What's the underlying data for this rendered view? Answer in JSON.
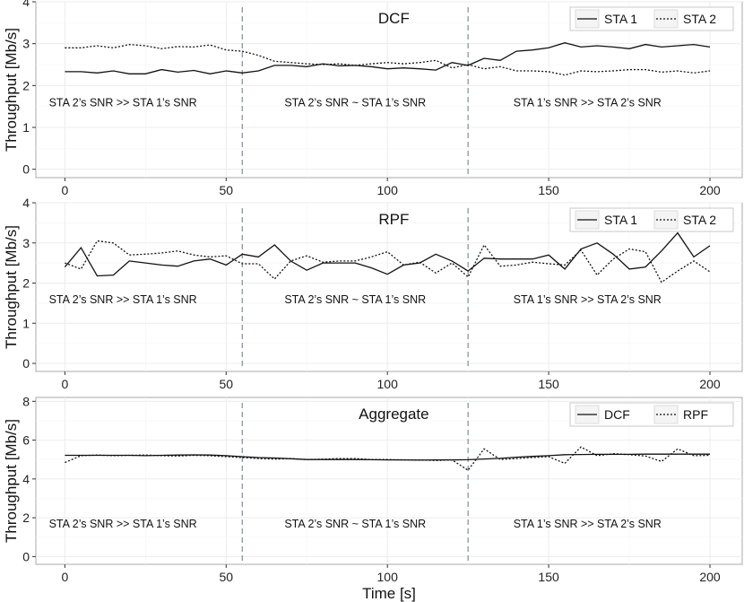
{
  "chart_data": [
    {
      "type": "line",
      "title": "DCF",
      "xlabel": "",
      "ylabel": "Throughput [Mb/s]",
      "xlim": [
        -9,
        210
      ],
      "ylim": [
        -0.2,
        4.0
      ],
      "xticks": [
        0,
        50,
        100,
        150,
        200
      ],
      "yticks": [
        0,
        1,
        2,
        3,
        4
      ],
      "legend": "top-right",
      "vlines": [
        55,
        125
      ],
      "regions": [
        {
          "label": "STA 2’s SNR >> STA 1’s SNR",
          "x": 18,
          "y": 1.5
        },
        {
          "label": "STA 2’s SNR ~ STA 1’s SNR",
          "x": 90,
          "y": 1.5
        },
        {
          "label": "STA 1’s SNR >> STA 2’s SNR",
          "x": 162,
          "y": 1.5
        }
      ],
      "x": [
        0,
        5,
        10,
        15,
        20,
        25,
        30,
        35,
        40,
        45,
        50,
        55,
        60,
        65,
        70,
        75,
        80,
        85,
        90,
        95,
        100,
        105,
        110,
        115,
        120,
        125,
        130,
        135,
        140,
        145,
        150,
        155,
        160,
        165,
        170,
        175,
        180,
        185,
        190,
        195,
        200
      ],
      "series": [
        {
          "name": "STA 1",
          "style": "solid",
          "values": [
            2.33,
            2.33,
            2.3,
            2.35,
            2.28,
            2.28,
            2.38,
            2.32,
            2.36,
            2.28,
            2.35,
            2.3,
            2.35,
            2.48,
            2.48,
            2.45,
            2.52,
            2.47,
            2.48,
            2.45,
            2.4,
            2.42,
            2.4,
            2.37,
            2.55,
            2.48,
            2.65,
            2.6,
            2.82,
            2.85,
            2.9,
            3.02,
            2.92,
            2.95,
            2.92,
            2.88,
            2.98,
            2.92,
            2.95,
            2.98,
            2.92
          ]
        },
        {
          "name": "STA 2",
          "style": "dotted",
          "values": [
            2.9,
            2.9,
            2.95,
            2.9,
            2.98,
            2.95,
            2.88,
            2.93,
            2.92,
            2.97,
            2.85,
            2.82,
            2.72,
            2.58,
            2.55,
            2.52,
            2.5,
            2.52,
            2.48,
            2.52,
            2.55,
            2.52,
            2.55,
            2.6,
            2.42,
            2.5,
            2.4,
            2.45,
            2.35,
            2.35,
            2.33,
            2.25,
            2.35,
            2.33,
            2.35,
            2.38,
            2.38,
            2.32,
            2.35,
            2.3,
            2.35
          ]
        }
      ]
    },
    {
      "type": "line",
      "title": "RPF",
      "xlabel": "",
      "ylabel": "Throughput [Mb/s]",
      "xlim": [
        -9,
        210
      ],
      "ylim": [
        -0.2,
        4.0
      ],
      "xticks": [
        0,
        50,
        100,
        150,
        200
      ],
      "yticks": [
        0,
        1,
        2,
        3,
        4
      ],
      "legend": "top-right",
      "vlines": [
        55,
        125
      ],
      "regions": [
        {
          "label": "STA 2’s SNR >> STA 1’s SNR",
          "x": 18,
          "y": 1.5
        },
        {
          "label": "STA 2’s SNR ~ STA 1’s SNR",
          "x": 90,
          "y": 1.5
        },
        {
          "label": "STA 1’s SNR >> STA 2’s SNR",
          "x": 162,
          "y": 1.5
        }
      ],
      "x": [
        0,
        5,
        10,
        15,
        20,
        25,
        30,
        35,
        40,
        45,
        50,
        55,
        60,
        65,
        70,
        75,
        80,
        85,
        90,
        95,
        100,
        105,
        110,
        115,
        120,
        125,
        130,
        135,
        140,
        145,
        150,
        155,
        160,
        165,
        170,
        175,
        180,
        185,
        190,
        195,
        200
      ],
      "series": [
        {
          "name": "STA 1",
          "style": "solid",
          "values": [
            2.4,
            2.88,
            2.18,
            2.2,
            2.55,
            2.5,
            2.45,
            2.42,
            2.55,
            2.6,
            2.45,
            2.72,
            2.65,
            2.95,
            2.55,
            2.32,
            2.5,
            2.5,
            2.5,
            2.38,
            2.22,
            2.45,
            2.5,
            2.72,
            2.55,
            2.3,
            2.62,
            2.6,
            2.6,
            2.6,
            2.7,
            2.35,
            2.85,
            3.0,
            2.72,
            2.35,
            2.4,
            2.8,
            3.25,
            2.65,
            2.93
          ]
        },
        {
          "name": "STA 2",
          "style": "dotted",
          "values": [
            2.5,
            2.35,
            3.05,
            3.0,
            2.7,
            2.72,
            2.75,
            2.8,
            2.7,
            2.65,
            2.68,
            2.48,
            2.48,
            2.1,
            2.55,
            2.68,
            2.52,
            2.55,
            2.55,
            2.65,
            2.78,
            2.45,
            2.52,
            2.25,
            2.5,
            2.15,
            2.95,
            2.42,
            2.45,
            2.52,
            2.48,
            2.45,
            2.82,
            2.2,
            2.6,
            2.85,
            2.78,
            2.02,
            2.3,
            2.55,
            2.28
          ]
        }
      ]
    },
    {
      "type": "line",
      "title": "Aggregate",
      "xlabel": "Time [s]",
      "ylabel": "Throughput [Mb/s]",
      "xlim": [
        -9,
        210
      ],
      "ylim": [
        -0.4,
        8.2
      ],
      "xticks": [
        0,
        50,
        100,
        150,
        200
      ],
      "yticks": [
        0,
        2,
        4,
        6,
        8
      ],
      "legend": "top-right",
      "vlines": [
        55,
        125
      ],
      "regions": [
        {
          "label": "STA 2’s SNR >> STA 1’s SNR",
          "x": 18,
          "y": 1.5
        },
        {
          "label": "STA 2’s SNR ~ STA 1’s SNR",
          "x": 90,
          "y": 1.5
        },
        {
          "label": "STA 1’s SNR >> STA 2’s SNR",
          "x": 162,
          "y": 1.5
        }
      ],
      "x": [
        0,
        5,
        10,
        15,
        20,
        25,
        30,
        35,
        40,
        45,
        50,
        55,
        60,
        65,
        70,
        75,
        80,
        85,
        90,
        95,
        100,
        105,
        110,
        115,
        120,
        125,
        130,
        135,
        140,
        145,
        150,
        155,
        160,
        165,
        170,
        175,
        180,
        185,
        190,
        195,
        200
      ],
      "series": [
        {
          "name": "DCF",
          "style": "solid",
          "values": [
            5.22,
            5.22,
            5.22,
            5.22,
            5.22,
            5.2,
            5.22,
            5.23,
            5.24,
            5.23,
            5.2,
            5.15,
            5.1,
            5.08,
            5.04,
            5.0,
            5.0,
            5.0,
            5.0,
            4.99,
            4.98,
            4.98,
            4.97,
            4.98,
            4.98,
            4.99,
            5.03,
            5.06,
            5.12,
            5.16,
            5.2,
            5.25,
            5.26,
            5.27,
            5.27,
            5.27,
            5.28,
            5.28,
            5.28,
            5.28,
            5.28
          ]
        },
        {
          "name": "RPF",
          "style": "dotted",
          "values": [
            4.85,
            5.2,
            5.23,
            5.2,
            5.22,
            5.23,
            5.2,
            5.18,
            5.22,
            5.2,
            5.15,
            5.1,
            5.05,
            5.02,
            5.05,
            5.0,
            5.02,
            5.05,
            5.05,
            5.0,
            5.0,
            4.98,
            4.98,
            4.95,
            4.98,
            4.45,
            5.55,
            5.0,
            5.05,
            5.1,
            5.15,
            4.8,
            5.65,
            5.2,
            5.3,
            5.25,
            5.18,
            4.9,
            5.55,
            5.2,
            5.22
          ]
        }
      ]
    }
  ]
}
